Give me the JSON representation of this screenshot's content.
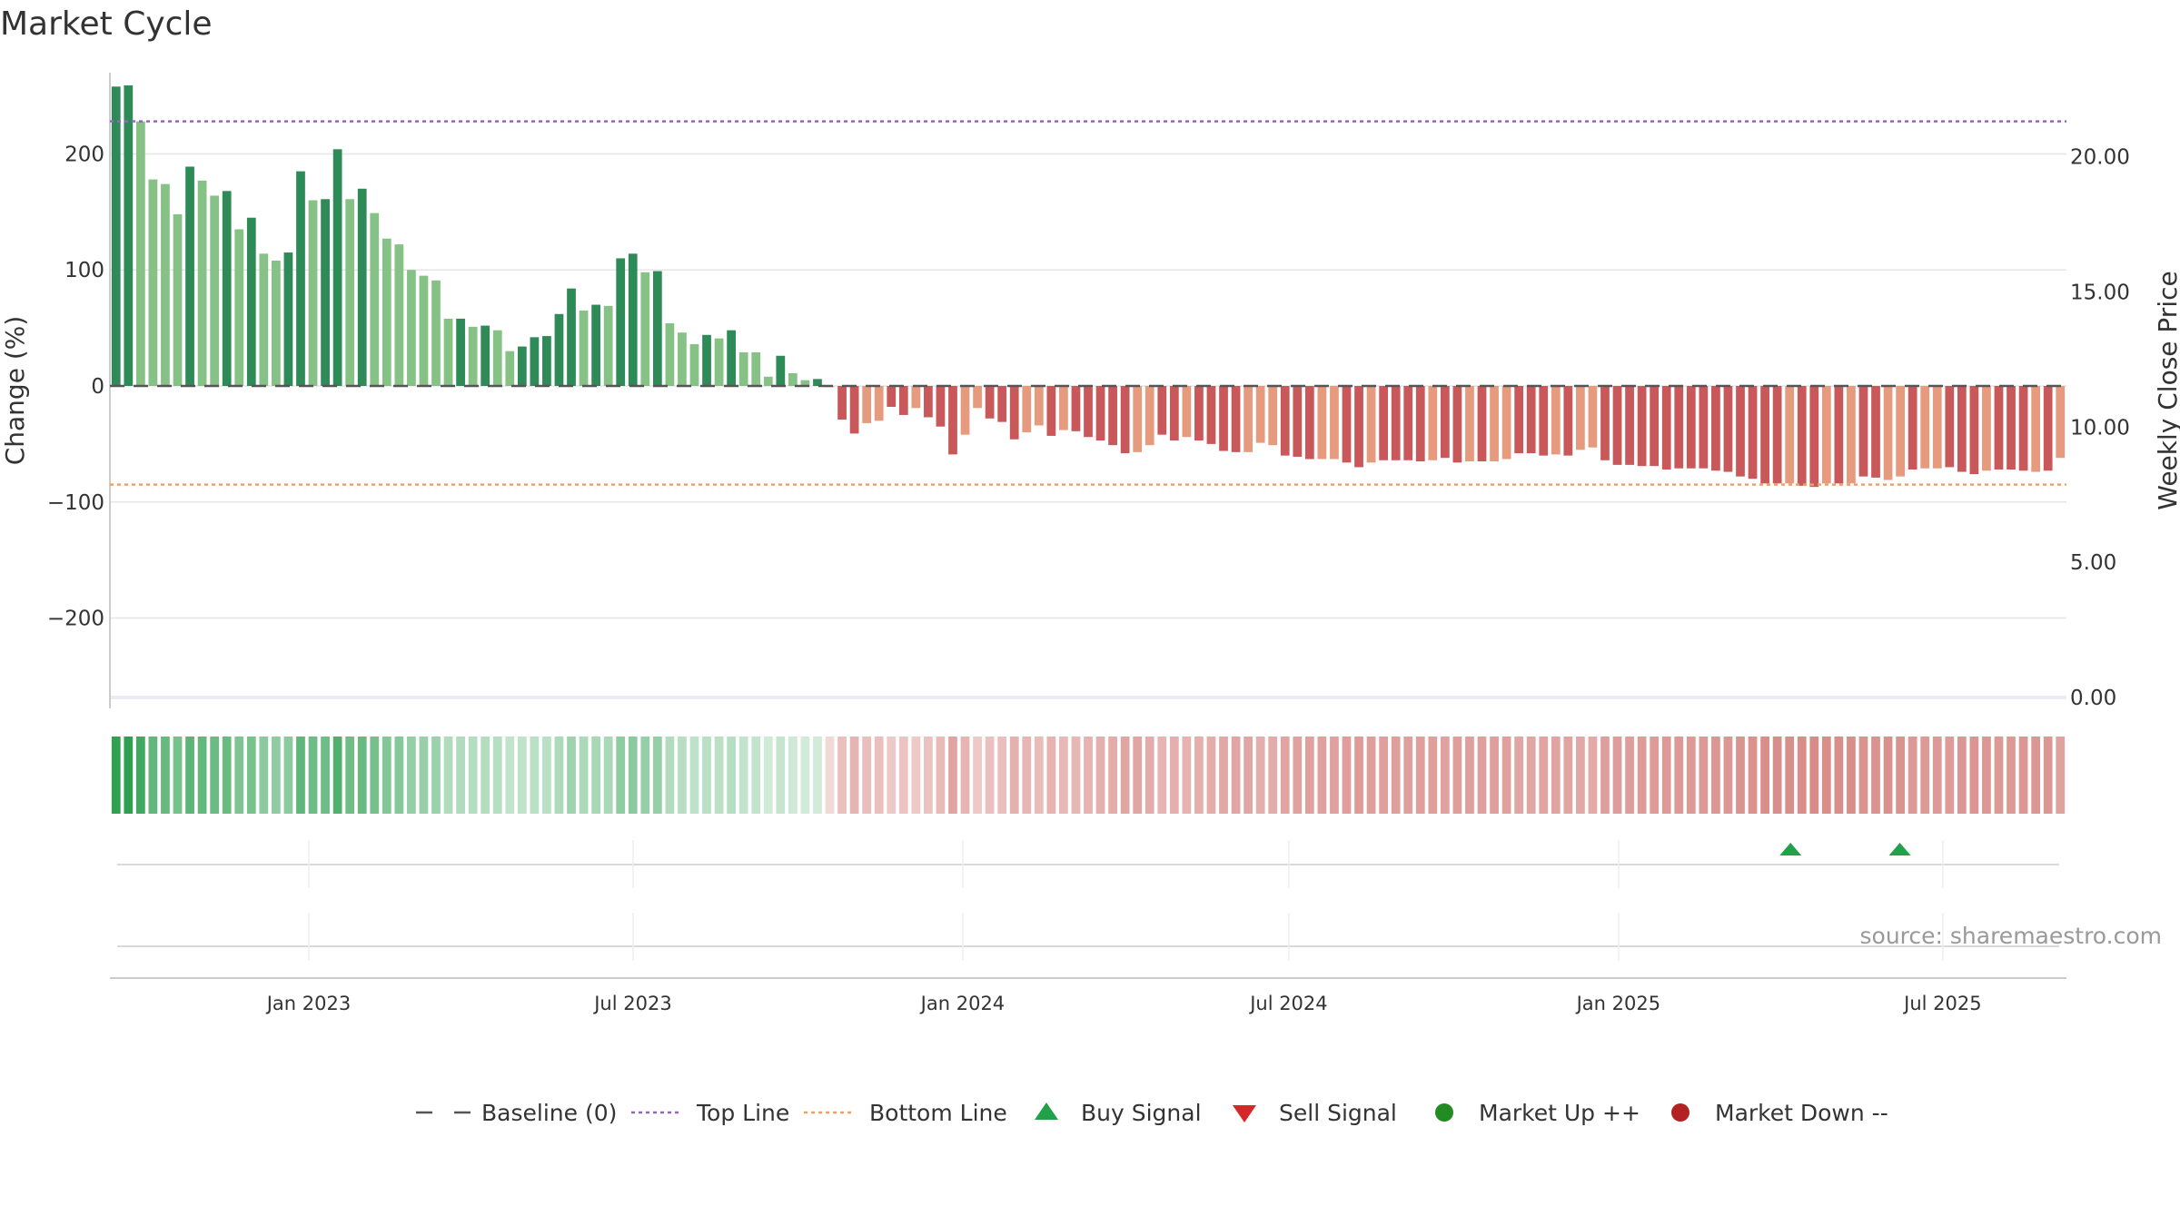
{
  "chart_data": {
    "type": "bar",
    "title": "Market Cycle",
    "ylabel": "Change (%)",
    "y2label": "Weekly Close Price",
    "source": "source: sharemaestro.com",
    "ylim": [
      -270,
      270
    ],
    "y2lim": [
      0,
      21.5
    ],
    "yticks": [
      200,
      100,
      0,
      -100,
      -200
    ],
    "ytick_labels": [
      "200",
      "100",
      "0",
      "−100",
      "−200"
    ],
    "y2ticks": [
      20,
      15,
      10,
      5,
      0
    ],
    "y2tick_labels": [
      "20.00",
      "15.00",
      "10.00",
      "5.00",
      "0.00"
    ],
    "x_start": "2022-09-12",
    "x_end": "2025-09-08",
    "xticks": [
      "2023-01-01",
      "2023-07-01",
      "2024-01-01",
      "2024-07-01",
      "2025-01-01",
      "2025-07-01"
    ],
    "xtick_labels": [
      "Jan 2023",
      "Jul 2023",
      "Jan 2024",
      "Jul 2024",
      "Jan 2025",
      "Jul 2025"
    ],
    "top_line": 228,
    "bottom_line": -85,
    "colors": {
      "up_strong": "#2e8b57",
      "up_weak": "#86c286",
      "down_strong": "#c9585a",
      "down_weak": "#e69a7e",
      "top_line": "#9467bd",
      "bottom_line": "#f0a060",
      "baseline": "#555555",
      "buy": "#22a04a",
      "sell": "#d62728",
      "market_up": "#228b22",
      "market_down": "#b22222"
    },
    "values": [
      258,
      259,
      228,
      178,
      174,
      148,
      189,
      177,
      164,
      168,
      135,
      145,
      114,
      108,
      115,
      185,
      160,
      161,
      204,
      161,
      170,
      149,
      127,
      122,
      100,
      95,
      91,
      58,
      58,
      51,
      52,
      48,
      30,
      34,
      42,
      43,
      62,
      84,
      65,
      70,
      69,
      110,
      114,
      98,
      99,
      54,
      46,
      36,
      44,
      41,
      48,
      29,
      29,
      8,
      26,
      11,
      5,
      6,
      -1,
      -29,
      -41,
      -32,
      -30,
      -18,
      -25,
      -19,
      -27,
      -35,
      -59,
      -42,
      -19,
      -28,
      -31,
      -46,
      -40,
      -34,
      -43,
      -38,
      -39,
      -44,
      -47,
      -51,
      -58,
      -57,
      -51,
      -42,
      -47,
      -44,
      -47,
      -50,
      -56,
      -57,
      -57,
      -49,
      -51,
      -60,
      -61,
      -63,
      -63,
      -63,
      -66,
      -70,
      -66,
      -64,
      -64,
      -64,
      -65,
      -64,
      -62,
      -66,
      -65,
      -65,
      -65,
      -63,
      -58,
      -58,
      -60,
      -59,
      -60,
      -55,
      -53,
      -64,
      -68,
      -68,
      -69,
      -69,
      -72,
      -71,
      -71,
      -71,
      -73,
      -74,
      -78,
      -80,
      -84,
      -84,
      -84,
      -86,
      -87,
      -84,
      -84,
      -84,
      -78,
      -79,
      -81,
      -78,
      -72,
      -71,
      -71,
      -70,
      -74,
      -76,
      -73,
      -72,
      -72,
      -73,
      -74,
      -73,
      -62
    ],
    "strong_flags": [
      1,
      1,
      0,
      0,
      0,
      0,
      1,
      0,
      0,
      1,
      0,
      1,
      0,
      0,
      1,
      1,
      0,
      1,
      1,
      0,
      1,
      0,
      0,
      0,
      0,
      0,
      0,
      0,
      1,
      0,
      1,
      0,
      0,
      1,
      1,
      1,
      1,
      1,
      0,
      1,
      0,
      1,
      1,
      0,
      1,
      0,
      0,
      0,
      1,
      0,
      1,
      0,
      0,
      0,
      1,
      0,
      0,
      1,
      0,
      1,
      1,
      0,
      0,
      1,
      1,
      0,
      1,
      1,
      1,
      0,
      0,
      1,
      1,
      1,
      0,
      0,
      1,
      0,
      1,
      1,
      1,
      1,
      1,
      0,
      0,
      1,
      1,
      0,
      1,
      1,
      1,
      1,
      0,
      0,
      0,
      1,
      1,
      1,
      0,
      0,
      1,
      1,
      0,
      1,
      1,
      1,
      1,
      0,
      1,
      1,
      0,
      1,
      0,
      0,
      1,
      1,
      1,
      0,
      1,
      0,
      0,
      1,
      1,
      1,
      1,
      1,
      1,
      1,
      1,
      1,
      1,
      1,
      1,
      1,
      1,
      1,
      0,
      1,
      1,
      0,
      1,
      0,
      1,
      1,
      0,
      0,
      1,
      0,
      0,
      1,
      1,
      1,
      0,
      1,
      1,
      1,
      0,
      1,
      0
    ],
    "buy_signals": [
      "2025-04-07",
      "2025-06-07"
    ],
    "sell_signals": []
  },
  "legend": [
    {
      "label": "Baseline (0)",
      "symbol": "dash",
      "color": "#555555"
    },
    {
      "label": "Top Line",
      "symbol": "dot",
      "color": "#9467bd"
    },
    {
      "label": "Bottom Line",
      "symbol": "dot",
      "color": "#f0a060"
    },
    {
      "label": "Buy Signal",
      "symbol": "triangle-up",
      "color": "#22a04a"
    },
    {
      "label": "Sell Signal",
      "symbol": "triangle-down",
      "color": "#d62728"
    },
    {
      "label": "Market Up ++",
      "symbol": "circle",
      "color": "#228b22"
    },
    {
      "label": "Market Down --",
      "symbol": "circle",
      "color": "#b22222"
    }
  ]
}
